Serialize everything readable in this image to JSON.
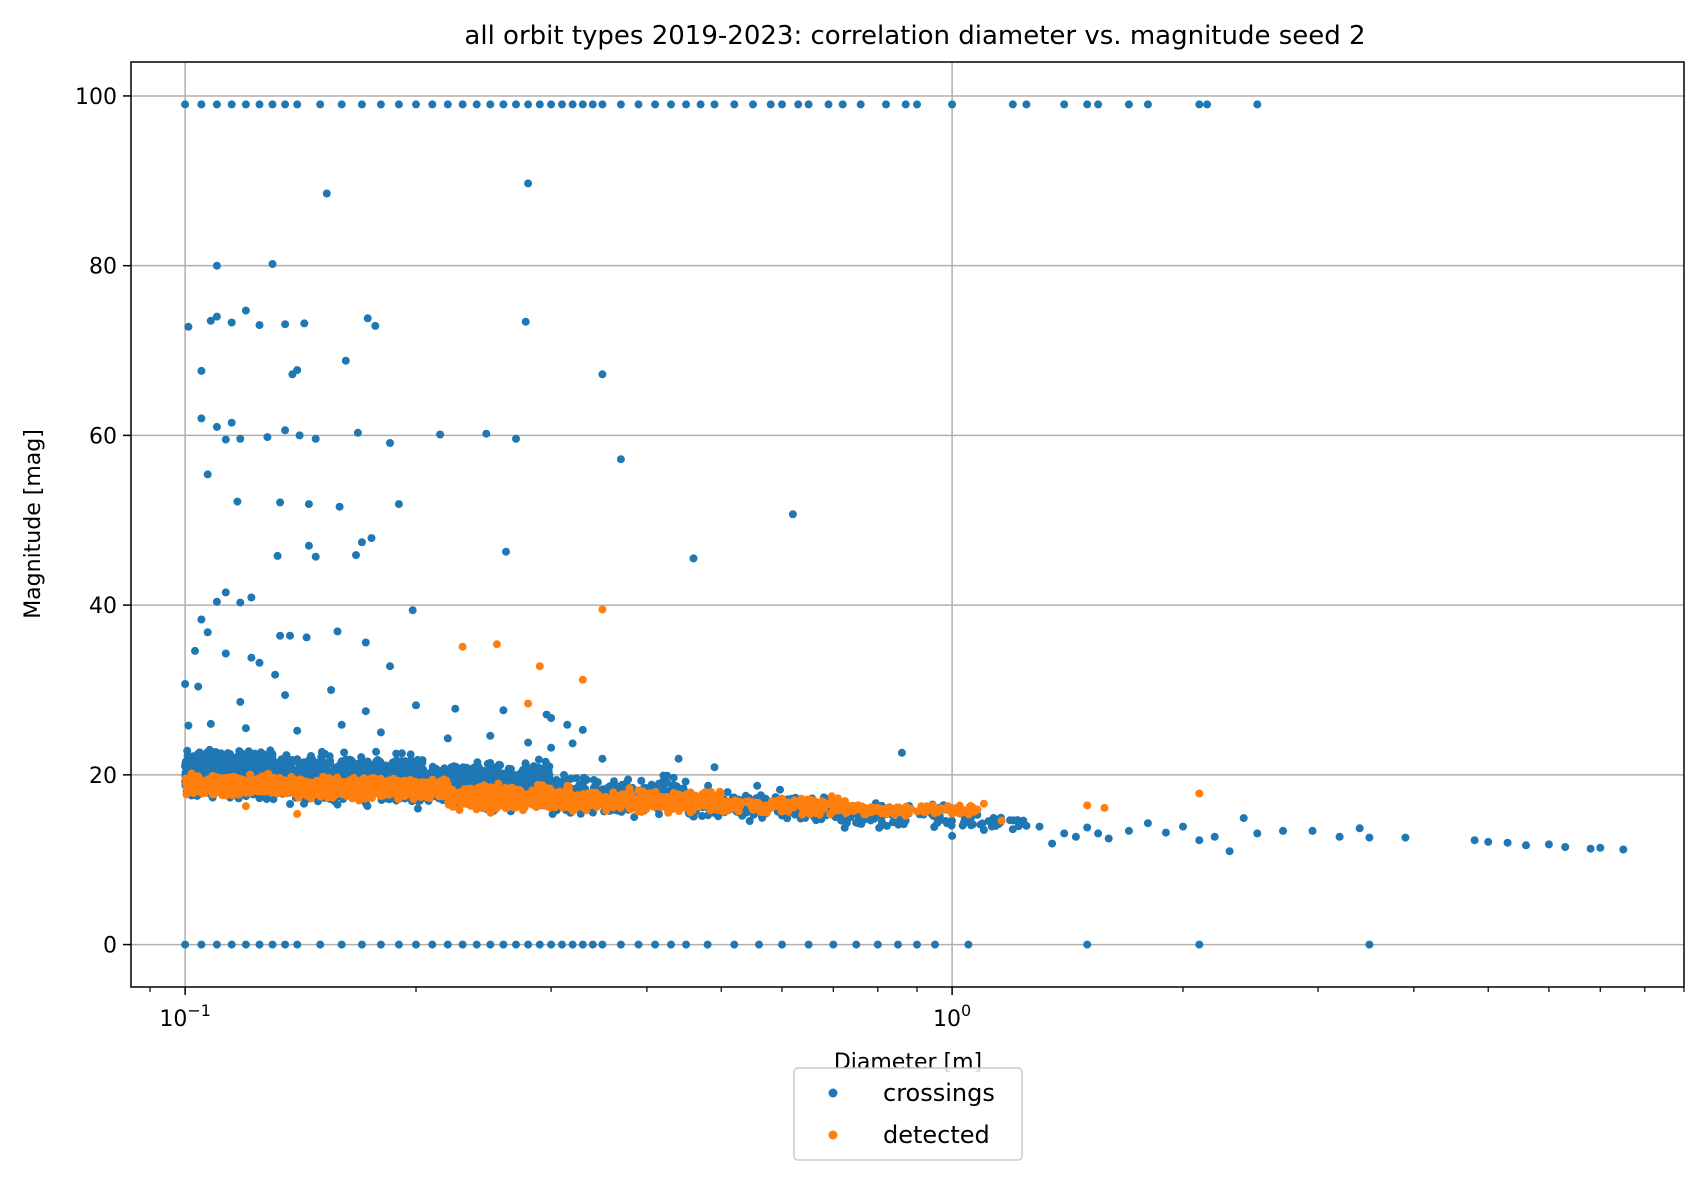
{
  "chart_data": {
    "type": "scatter",
    "title": "all orbit types 2019-2023: correlation diameter vs. magnitude seed 2",
    "xlabel": "Diameter [m]",
    "ylabel": "Magnitude [mag]",
    "xscale": "log",
    "xlim": [
      0.085,
      9.0
    ],
    "ylim": [
      -5,
      104
    ],
    "grid": true,
    "legend_placement": "below-center",
    "xticks": [
      {
        "value": 0.1,
        "base": "10",
        "exp": "−1"
      },
      {
        "value": 1,
        "base": "10",
        "exp": "0"
      }
    ],
    "yticks": [
      0,
      20,
      40,
      60,
      80,
      100
    ],
    "series": [
      {
        "name": "crossings",
        "color": "#1f77b4",
        "points": [
          [
            0.1,
            99
          ],
          [
            0.105,
            99
          ],
          [
            0.11,
            99
          ],
          [
            0.115,
            99
          ],
          [
            0.12,
            99
          ],
          [
            0.125,
            99
          ],
          [
            0.13,
            99
          ],
          [
            0.135,
            99
          ],
          [
            0.14,
            99
          ],
          [
            0.15,
            99
          ],
          [
            0.16,
            99
          ],
          [
            0.17,
            99
          ],
          [
            0.18,
            99
          ],
          [
            0.19,
            99
          ],
          [
            0.2,
            99
          ],
          [
            0.21,
            99
          ],
          [
            0.22,
            99
          ],
          [
            0.23,
            99
          ],
          [
            0.24,
            99
          ],
          [
            0.25,
            99
          ],
          [
            0.26,
            99
          ],
          [
            0.27,
            99
          ],
          [
            0.28,
            99
          ],
          [
            0.29,
            99
          ],
          [
            0.3,
            99
          ],
          [
            0.31,
            99
          ],
          [
            0.32,
            99
          ],
          [
            0.33,
            99
          ],
          [
            0.34,
            99
          ],
          [
            0.35,
            99
          ],
          [
            0.37,
            99
          ],
          [
            0.39,
            99
          ],
          [
            0.41,
            99
          ],
          [
            0.43,
            99
          ],
          [
            0.45,
            99
          ],
          [
            0.47,
            99
          ],
          [
            0.49,
            99
          ],
          [
            0.52,
            99
          ],
          [
            0.55,
            99
          ],
          [
            0.58,
            99
          ],
          [
            0.6,
            99
          ],
          [
            0.63,
            99
          ],
          [
            0.65,
            99
          ],
          [
            0.69,
            99
          ],
          [
            0.72,
            99
          ],
          [
            0.76,
            99
          ],
          [
            0.82,
            99
          ],
          [
            0.87,
            99
          ],
          [
            0.9,
            99
          ],
          [
            1.0,
            99
          ],
          [
            1.2,
            99
          ],
          [
            1.25,
            99
          ],
          [
            1.4,
            99
          ],
          [
            1.5,
            99
          ],
          [
            1.55,
            99
          ],
          [
            1.7,
            99
          ],
          [
            1.8,
            99
          ],
          [
            2.1,
            99
          ],
          [
            2.15,
            99
          ],
          [
            2.5,
            99
          ],
          [
            0.1,
            0
          ],
          [
            0.105,
            0
          ],
          [
            0.11,
            0
          ],
          [
            0.115,
            0
          ],
          [
            0.12,
            0
          ],
          [
            0.125,
            0
          ],
          [
            0.13,
            0
          ],
          [
            0.135,
            0
          ],
          [
            0.14,
            0
          ],
          [
            0.15,
            0
          ],
          [
            0.16,
            0
          ],
          [
            0.17,
            0
          ],
          [
            0.18,
            0
          ],
          [
            0.19,
            0
          ],
          [
            0.2,
            0
          ],
          [
            0.21,
            0
          ],
          [
            0.22,
            0
          ],
          [
            0.23,
            0
          ],
          [
            0.24,
            0
          ],
          [
            0.25,
            0
          ],
          [
            0.26,
            0
          ],
          [
            0.27,
            0
          ],
          [
            0.28,
            0
          ],
          [
            0.29,
            0
          ],
          [
            0.3,
            0
          ],
          [
            0.31,
            0
          ],
          [
            0.32,
            0
          ],
          [
            0.33,
            0
          ],
          [
            0.34,
            0
          ],
          [
            0.35,
            0
          ],
          [
            0.37,
            0
          ],
          [
            0.39,
            0
          ],
          [
            0.41,
            0
          ],
          [
            0.43,
            0
          ],
          [
            0.45,
            0
          ],
          [
            0.48,
            0
          ],
          [
            0.52,
            0
          ],
          [
            0.56,
            0
          ],
          [
            0.6,
            0
          ],
          [
            0.65,
            0
          ],
          [
            0.7,
            0
          ],
          [
            0.75,
            0
          ],
          [
            0.8,
            0
          ],
          [
            0.85,
            0
          ],
          [
            0.9,
            0
          ],
          [
            0.95,
            0
          ],
          [
            1.05,
            0
          ],
          [
            1.5,
            0
          ],
          [
            2.1,
            0
          ],
          [
            3.5,
            0
          ],
          [
            0.153,
            88.5
          ],
          [
            0.28,
            89.7
          ],
          [
            0.11,
            80
          ],
          [
            0.13,
            80.2
          ],
          [
            0.101,
            72.8
          ],
          [
            0.108,
            73.5
          ],
          [
            0.11,
            74
          ],
          [
            0.115,
            73.3
          ],
          [
            0.12,
            74.7
          ],
          [
            0.125,
            73
          ],
          [
            0.135,
            73.1
          ],
          [
            0.143,
            73.2
          ],
          [
            0.173,
            73.8
          ],
          [
            0.278,
            73.4
          ],
          [
            0.177,
            72.9
          ],
          [
            0.162,
            68.8
          ],
          [
            0.105,
            67.6
          ],
          [
            0.138,
            67.2
          ],
          [
            0.14,
            67.7
          ],
          [
            0.35,
            67.2
          ],
          [
            0.105,
            62
          ],
          [
            0.11,
            61
          ],
          [
            0.115,
            61.5
          ],
          [
            0.113,
            59.5
          ],
          [
            0.118,
            59.6
          ],
          [
            0.128,
            59.8
          ],
          [
            0.135,
            60.6
          ],
          [
            0.141,
            60
          ],
          [
            0.148,
            59.6
          ],
          [
            0.168,
            60.3
          ],
          [
            0.185,
            59.1
          ],
          [
            0.215,
            60.1
          ],
          [
            0.247,
            60.2
          ],
          [
            0.27,
            59.6
          ],
          [
            0.37,
            57.2
          ],
          [
            0.117,
            52.2
          ],
          [
            0.133,
            52.1
          ],
          [
            0.145,
            51.9
          ],
          [
            0.159,
            51.6
          ],
          [
            0.19,
            51.9
          ],
          [
            0.145,
            47
          ],
          [
            0.132,
            45.8
          ],
          [
            0.148,
            45.7
          ],
          [
            0.17,
            47.4
          ],
          [
            0.175,
            47.9
          ],
          [
            0.167,
            45.9
          ],
          [
            0.262,
            46.3
          ],
          [
            0.46,
            45.5
          ],
          [
            0.62,
            50.7
          ],
          [
            0.107,
            55.4
          ],
          [
            0.105,
            38.3
          ],
          [
            0.11,
            40.4
          ],
          [
            0.113,
            41.5
          ],
          [
            0.118,
            40.3
          ],
          [
            0.122,
            40.9
          ],
          [
            0.198,
            39.4
          ],
          [
            0.103,
            34.6
          ],
          [
            0.107,
            36.8
          ],
          [
            0.113,
            34.3
          ],
          [
            0.122,
            33.8
          ],
          [
            0.133,
            36.4
          ],
          [
            0.137,
            36.4
          ],
          [
            0.144,
            36.2
          ],
          [
            0.158,
            36.9
          ],
          [
            0.172,
            35.6
          ],
          [
            0.185,
            32.8
          ],
          [
            0.125,
            33.2
          ],
          [
            0.131,
            31.8
          ],
          [
            0.1,
            30.7
          ],
          [
            0.104,
            30.4
          ],
          [
            0.118,
            28.6
          ],
          [
            0.135,
            29.4
          ],
          [
            0.155,
            30
          ],
          [
            0.172,
            27.5
          ],
          [
            0.2,
            28.2
          ],
          [
            0.225,
            27.8
          ],
          [
            0.26,
            27.6
          ],
          [
            0.296,
            27.1
          ],
          [
            0.3,
            26.7
          ],
          [
            0.315,
            25.9
          ],
          [
            0.33,
            25.3
          ],
          [
            0.35,
            21.9
          ],
          [
            0.44,
            21.9
          ],
          [
            0.49,
            20.9
          ],
          [
            0.86,
            22.6
          ],
          [
            0.101,
            25.8
          ],
          [
            0.108,
            26
          ],
          [
            0.12,
            25.5
          ],
          [
            0.14,
            25.2
          ],
          [
            0.16,
            25.9
          ],
          [
            0.18,
            25
          ],
          [
            0.22,
            24.3
          ],
          [
            0.25,
            24.6
          ],
          [
            0.28,
            23.8
          ],
          [
            0.3,
            23.2
          ],
          [
            0.32,
            23.7
          ],
          [
            1.0,
            12.8
          ],
          [
            1.1,
            13.5
          ],
          [
            1.15,
            14.2
          ],
          [
            1.2,
            13.6
          ],
          [
            1.25,
            14
          ],
          [
            1.3,
            13.9
          ],
          [
            1.35,
            11.9
          ],
          [
            1.4,
            13.1
          ],
          [
            1.45,
            12.7
          ],
          [
            1.5,
            13.8
          ],
          [
            1.55,
            13.1
          ],
          [
            1.6,
            12.5
          ],
          [
            1.7,
            13.4
          ],
          [
            1.8,
            14.3
          ],
          [
            1.9,
            13.2
          ],
          [
            2.0,
            13.9
          ],
          [
            2.1,
            12.3
          ],
          [
            2.2,
            12.7
          ],
          [
            2.3,
            11
          ],
          [
            2.4,
            14.9
          ],
          [
            2.5,
            13.1
          ],
          [
            2.7,
            13.4
          ],
          [
            2.95,
            13.4
          ],
          [
            3.2,
            12.7
          ],
          [
            3.4,
            13.7
          ],
          [
            3.5,
            12.6
          ],
          [
            3.9,
            12.6
          ],
          [
            4.8,
            12.3
          ],
          [
            5.0,
            12.1
          ],
          [
            5.3,
            12
          ],
          [
            5.6,
            11.7
          ],
          [
            6.0,
            11.8
          ],
          [
            6.3,
            11.5
          ],
          [
            6.8,
            11.3
          ],
          [
            7.0,
            11.4
          ],
          [
            7.5,
            11.2
          ]
        ],
        "bands": [
          {
            "x0": 0.1,
            "x1": 0.13,
            "ymin": 16.8,
            "ymax": 23.5,
            "n": 950
          },
          {
            "x0": 0.13,
            "x1": 0.2,
            "ymin": 15.8,
            "ymax": 23.2,
            "n": 850
          },
          {
            "x0": 0.2,
            "x1": 0.3,
            "ymin": 15.5,
            "ymax": 22.2,
            "n": 620
          },
          {
            "x0": 0.3,
            "x1": 0.45,
            "ymin": 14.5,
            "ymax": 20.5,
            "n": 360
          },
          {
            "x0": 0.45,
            "x1": 0.7,
            "ymin": 13.8,
            "ymax": 18.8,
            "n": 170
          },
          {
            "x0": 0.7,
            "x1": 1.0,
            "ymin": 13.2,
            "ymax": 17.2,
            "n": 70
          },
          {
            "x0": 1.0,
            "x1": 1.25,
            "ymin": 13.5,
            "ymax": 15.6,
            "n": 30
          }
        ]
      },
      {
        "name": "detected",
        "color": "#ff7f0e",
        "points": [
          [
            0.35,
            39.5
          ],
          [
            0.23,
            35.1
          ],
          [
            0.255,
            35.4
          ],
          [
            0.29,
            32.8
          ],
          [
            0.33,
            31.2
          ],
          [
            0.28,
            28.4
          ],
          [
            0.12,
            16.3
          ],
          [
            0.14,
            15.4
          ],
          [
            1.1,
            16.6
          ],
          [
            1.5,
            16.4
          ],
          [
            1.58,
            16.1
          ],
          [
            2.1,
            17.8
          ],
          [
            1.16,
            14.6
          ],
          [
            0.59,
            16.3
          ],
          [
            0.76,
            15.9
          ]
        ],
        "bands": [
          {
            "x0": 0.1,
            "x1": 0.14,
            "ymin": 17.3,
            "ymax": 20.3,
            "n": 520
          },
          {
            "x0": 0.14,
            "x1": 0.22,
            "ymin": 16.8,
            "ymax": 20.0,
            "n": 520
          },
          {
            "x0": 0.22,
            "x1": 0.32,
            "ymin": 15.4,
            "ymax": 19.2,
            "n": 420
          },
          {
            "x0": 0.32,
            "x1": 0.5,
            "ymin": 15.2,
            "ymax": 18.6,
            "n": 320
          },
          {
            "x0": 0.5,
            "x1": 0.75,
            "ymin": 15.0,
            "ymax": 17.7,
            "n": 170
          },
          {
            "x0": 0.75,
            "x1": 1.08,
            "ymin": 15.0,
            "ymax": 16.7,
            "n": 90
          }
        ]
      }
    ]
  }
}
